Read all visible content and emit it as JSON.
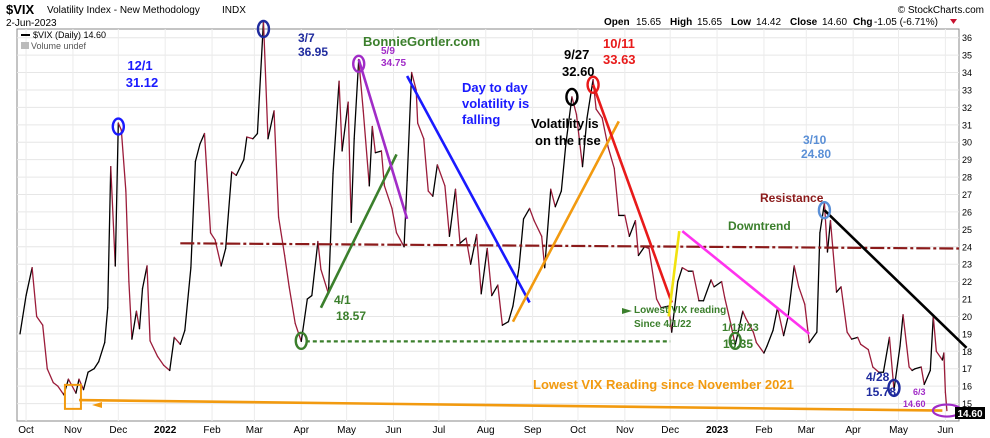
{
  "header": {
    "symbol": "$VIX",
    "name": "Volatility Index - New Methodology",
    "exchange": "INDX",
    "date": "2-Jun-2023",
    "brand": "© StockCharts.com",
    "open_label": "Open",
    "open": "15.65",
    "high_label": "High",
    "high": "15.65",
    "low_label": "Low",
    "low": "14.42",
    "close_label": "Close",
    "close": "14.60",
    "chg_label": "Chg",
    "chg": "-1.05 (-6.71%)"
  },
  "legend": {
    "series_label": "$VIX (Daily) 14.60",
    "volume_label": "Volume undef"
  },
  "watermark": "BonnieGortler.com",
  "price_box": "14.60",
  "colors": {
    "up": "#000000",
    "down": "#9b1c3a",
    "blue": "#1a1aff",
    "red": "#e81a1a",
    "green": "#3b7f2c",
    "purple": "#a12cc7",
    "orange": "#f29a0f",
    "magenta": "#ff33ee",
    "yellow": "#f1e20f",
    "darkred": "#8b1a1a",
    "light_blue": "#5a8fd6",
    "navy": "#1f2b9e"
  },
  "annotations": {
    "a_1201_date": "12/1",
    "a_1201_val": "31.12",
    "a_37_date": "3/7",
    "a_37_val": "36.95",
    "a_59_date": "5/9",
    "a_59_val": "34.75",
    "a_927_date": "9/27",
    "a_927_val": "32.60",
    "a_1011_date": "10/11",
    "a_1011_val": "33.63",
    "a_310_date": "3/10",
    "a_310_val": "24.80",
    "a_41_date": "4/1",
    "a_41_val": "18.57",
    "a_11323_date": "1/13/23",
    "a_11323_val": "18.35",
    "a_428_date": "4/28",
    "a_428_val": "15.78",
    "a_63_date": "6/3",
    "a_63_val": "14.60",
    "day_to_day_1": "Day to day",
    "day_to_day_2": "volatility is",
    "day_to_day_3": "falling",
    "vol_rise_1": "Volatility is",
    "vol_rise_2": "on the rise",
    "resistance": "Resistance",
    "downtrend": "Downtrend",
    "lowest_since_1": "Lowest VIX reading",
    "lowest_since_2": "Since 4/1/22",
    "lowest_nov": "Lowest VIX Reading since November 2021"
  },
  "chart_data": {
    "type": "line",
    "title": "$VIX Volatility Index - New Methodology INDX",
    "ylim": [
      14,
      36.5
    ],
    "y_ticks": [
      15,
      16,
      17,
      18,
      19,
      20,
      21,
      22,
      23,
      24,
      25,
      26,
      27,
      28,
      29,
      30,
      31,
      32,
      33,
      34,
      35,
      36
    ],
    "x_ticks": [
      "Oct",
      "Nov",
      "Dec",
      "2022",
      "Feb",
      "Mar",
      "Apr",
      "May",
      "Jun",
      "Jul",
      "Aug",
      "Sep",
      "Oct",
      "Nov",
      "Dec",
      "2023",
      "Feb",
      "Mar",
      "Apr",
      "May",
      "Jun"
    ],
    "x_start": "2021-09-25",
    "x_end": "2023-06-10",
    "x_tick_dates": [
      "2021-10-01",
      "2021-11-01",
      "2021-12-01",
      "2022-01-01",
      "2022-02-01",
      "2022-03-01",
      "2022-04-01",
      "2022-05-01",
      "2022-06-01",
      "2022-07-01",
      "2022-08-01",
      "2022-09-01",
      "2022-10-01",
      "2022-11-01",
      "2022-12-01",
      "2023-01-01",
      "2023-02-01",
      "2023-03-01",
      "2023-04-01",
      "2023-05-01",
      "2023-06-01"
    ],
    "series": [
      {
        "name": "$VIX (Daily)",
        "points": [
          [
            "2021-09-27",
            19.0
          ],
          [
            "2021-10-01",
            21.2
          ],
          [
            "2021-10-05",
            22.8
          ],
          [
            "2021-10-08",
            20.0
          ],
          [
            "2021-10-12",
            19.5
          ],
          [
            "2021-10-15",
            17.0
          ],
          [
            "2021-10-19",
            16.2
          ],
          [
            "2021-10-22",
            16.0
          ],
          [
            "2021-10-26",
            15.5
          ],
          [
            "2021-10-29",
            16.4
          ],
          [
            "2021-11-03",
            15.6
          ],
          [
            "2021-11-05",
            16.4
          ],
          [
            "2021-11-08",
            15.8
          ],
          [
            "2021-11-11",
            16.8
          ],
          [
            "2021-11-15",
            17.0
          ],
          [
            "2021-11-18",
            17.4
          ],
          [
            "2021-11-22",
            18.5
          ],
          [
            "2021-11-24",
            20.5
          ],
          [
            "2021-11-26",
            28.6
          ],
          [
            "2021-11-29",
            22.9
          ],
          [
            "2021-12-01",
            31.1
          ],
          [
            "2021-12-03",
            30.7
          ],
          [
            "2021-12-06",
            27.2
          ],
          [
            "2021-12-08",
            22.0
          ],
          [
            "2021-12-10",
            18.7
          ],
          [
            "2021-12-13",
            20.3
          ],
          [
            "2021-12-15",
            19.3
          ],
          [
            "2021-12-17",
            21.6
          ],
          [
            "2021-12-20",
            22.9
          ],
          [
            "2021-12-22",
            18.6
          ],
          [
            "2021-12-27",
            17.7
          ],
          [
            "2021-12-31",
            17.2
          ],
          [
            "2022-01-04",
            16.9
          ],
          [
            "2022-01-07",
            18.8
          ],
          [
            "2022-01-11",
            18.4
          ],
          [
            "2022-01-14",
            19.2
          ],
          [
            "2022-01-18",
            22.8
          ],
          [
            "2022-01-21",
            28.9
          ],
          [
            "2022-01-24",
            29.9
          ],
          [
            "2022-01-27",
            30.5
          ],
          [
            "2022-01-31",
            24.8
          ],
          [
            "2022-02-03",
            24.4
          ],
          [
            "2022-02-07",
            22.9
          ],
          [
            "2022-02-10",
            23.9
          ],
          [
            "2022-02-14",
            28.3
          ],
          [
            "2022-02-17",
            28.1
          ],
          [
            "2022-02-22",
            29.0
          ],
          [
            "2022-02-24",
            30.3
          ],
          [
            "2022-02-28",
            30.2
          ],
          [
            "2022-03-03",
            30.5
          ],
          [
            "2022-03-07",
            36.95
          ],
          [
            "2022-03-10",
            30.2
          ],
          [
            "2022-03-14",
            31.8
          ],
          [
            "2022-03-17",
            25.7
          ],
          [
            "2022-03-21",
            23.5
          ],
          [
            "2022-03-24",
            21.7
          ],
          [
            "2022-03-28",
            19.6
          ],
          [
            "2022-04-01",
            18.57
          ],
          [
            "2022-04-05",
            21.0
          ],
          [
            "2022-04-08",
            21.2
          ],
          [
            "2022-04-12",
            24.3
          ],
          [
            "2022-04-14",
            22.7
          ],
          [
            "2022-04-19",
            21.3
          ],
          [
            "2022-04-22",
            28.2
          ],
          [
            "2022-04-26",
            33.5
          ],
          [
            "2022-04-28",
            29.5
          ],
          [
            "2022-05-02",
            32.3
          ],
          [
            "2022-05-04",
            25.4
          ],
          [
            "2022-05-06",
            30.2
          ],
          [
            "2022-05-09",
            34.75
          ],
          [
            "2022-05-12",
            31.8
          ],
          [
            "2022-05-16",
            27.5
          ],
          [
            "2022-05-18",
            30.9
          ],
          [
            "2022-05-20",
            29.4
          ],
          [
            "2022-05-24",
            29.5
          ],
          [
            "2022-05-26",
            27.5
          ],
          [
            "2022-05-31",
            26.2
          ],
          [
            "2022-06-03",
            24.8
          ],
          [
            "2022-06-08",
            24.0
          ],
          [
            "2022-06-10",
            27.8
          ],
          [
            "2022-06-13",
            34.0
          ],
          [
            "2022-06-16",
            33.0
          ],
          [
            "2022-06-17",
            31.1
          ],
          [
            "2022-06-21",
            30.2
          ],
          [
            "2022-06-24",
            27.2
          ],
          [
            "2022-06-27",
            26.9
          ],
          [
            "2022-06-30",
            28.7
          ],
          [
            "2022-07-05",
            27.5
          ],
          [
            "2022-07-08",
            24.6
          ],
          [
            "2022-07-12",
            27.3
          ],
          [
            "2022-07-15",
            24.2
          ],
          [
            "2022-07-19",
            24.5
          ],
          [
            "2022-07-22",
            23.0
          ],
          [
            "2022-07-26",
            24.7
          ],
          [
            "2022-07-29",
            21.3
          ],
          [
            "2022-08-02",
            23.9
          ],
          [
            "2022-08-05",
            21.2
          ],
          [
            "2022-08-09",
            21.8
          ],
          [
            "2022-08-12",
            19.5
          ],
          [
            "2022-08-16",
            19.7
          ],
          [
            "2022-08-19",
            20.6
          ],
          [
            "2022-08-23",
            22.8
          ],
          [
            "2022-08-26",
            25.6
          ],
          [
            "2022-08-30",
            26.2
          ],
          [
            "2022-09-02",
            25.5
          ],
          [
            "2022-09-07",
            24.6
          ],
          [
            "2022-09-09",
            22.8
          ],
          [
            "2022-09-13",
            27.3
          ],
          [
            "2022-09-16",
            26.3
          ],
          [
            "2022-09-20",
            27.2
          ],
          [
            "2022-09-23",
            29.9
          ],
          [
            "2022-09-27",
            32.6
          ],
          [
            "2022-09-30",
            31.6
          ],
          [
            "2022-10-04",
            28.6
          ],
          [
            "2022-10-07",
            31.4
          ],
          [
            "2022-10-11",
            33.6
          ],
          [
            "2022-10-13",
            31.9
          ],
          [
            "2022-10-17",
            31.4
          ],
          [
            "2022-10-21",
            29.7
          ],
          [
            "2022-10-25",
            28.5
          ],
          [
            "2022-10-28",
            25.8
          ],
          [
            "2022-11-01",
            25.8
          ],
          [
            "2022-11-04",
            24.6
          ],
          [
            "2022-11-08",
            25.5
          ],
          [
            "2022-11-10",
            23.5
          ],
          [
            "2022-11-14",
            24.0
          ],
          [
            "2022-11-17",
            23.9
          ],
          [
            "2022-11-22",
            21.0
          ],
          [
            "2022-11-25",
            20.5
          ],
          [
            "2022-11-30",
            20.6
          ],
          [
            "2022-12-02",
            19.1
          ],
          [
            "2022-12-06",
            22.0
          ],
          [
            "2022-12-09",
            22.8
          ],
          [
            "2022-12-13",
            22.6
          ],
          [
            "2022-12-16",
            22.6
          ],
          [
            "2022-12-20",
            20.9
          ],
          [
            "2022-12-23",
            20.9
          ],
          [
            "2022-12-28",
            22.1
          ],
          [
            "2022-12-30",
            21.7
          ],
          [
            "2023-01-04",
            22.0
          ],
          [
            "2023-01-06",
            21.1
          ],
          [
            "2023-01-10",
            19.6
          ],
          [
            "2023-01-13",
            18.35
          ],
          [
            "2023-01-18",
            20.3
          ],
          [
            "2023-01-20",
            19.9
          ],
          [
            "2023-01-25",
            19.1
          ],
          [
            "2023-01-27",
            18.5
          ],
          [
            "2023-02-01",
            17.9
          ],
          [
            "2023-02-03",
            18.3
          ],
          [
            "2023-02-07",
            19.2
          ],
          [
            "2023-02-10",
            20.5
          ],
          [
            "2023-02-14",
            18.9
          ],
          [
            "2023-02-17",
            20.0
          ],
          [
            "2023-02-21",
            22.9
          ],
          [
            "2023-02-24",
            21.7
          ],
          [
            "2023-02-28",
            20.7
          ],
          [
            "2023-03-03",
            18.5
          ],
          [
            "2023-03-08",
            19.1
          ],
          [
            "2023-03-10",
            24.8
          ],
          [
            "2023-03-13",
            26.5
          ],
          [
            "2023-03-15",
            23.7
          ],
          [
            "2023-03-17",
            25.5
          ],
          [
            "2023-03-21",
            21.4
          ],
          [
            "2023-03-24",
            21.7
          ],
          [
            "2023-03-28",
            19.1
          ],
          [
            "2023-03-31",
            18.7
          ],
          [
            "2023-04-04",
            18.8
          ],
          [
            "2023-04-06",
            18.4
          ],
          [
            "2023-04-11",
            18.1
          ],
          [
            "2023-04-14",
            17.1
          ],
          [
            "2023-04-18",
            16.8
          ],
          [
            "2023-04-21",
            16.8
          ],
          [
            "2023-04-25",
            18.8
          ],
          [
            "2023-04-28",
            15.78
          ],
          [
            "2023-05-02",
            18.3
          ],
          [
            "2023-05-04",
            20.1
          ],
          [
            "2023-05-08",
            17.1
          ],
          [
            "2023-05-10",
            16.9
          ],
          [
            "2023-05-12",
            17.0
          ],
          [
            "2023-05-16",
            17.1
          ],
          [
            "2023-05-18",
            16.1
          ],
          [
            "2023-05-22",
            16.9
          ],
          [
            "2023-05-24",
            20.0
          ],
          [
            "2023-05-26",
            18.0
          ],
          [
            "2023-05-30",
            17.5
          ],
          [
            "2023-05-31",
            17.9
          ],
          [
            "2023-06-01",
            15.65
          ],
          [
            "2023-06-02",
            14.6
          ]
        ]
      }
    ],
    "lines": [
      {
        "name": "resistance",
        "color": "darkred",
        "dash": true,
        "from": [
          "2022-01-11",
          24.2
        ],
        "to": [
          "2023-06-10",
          23.9
        ]
      },
      {
        "name": "lowest-since-nov",
        "color": "orange",
        "dash": false,
        "from": [
          "2021-11-05",
          15.2
        ],
        "to": [
          "2023-05-30",
          14.6
        ]
      },
      {
        "name": "lowest-since-apr-arrow",
        "color": "green",
        "dash": true,
        "from": [
          "2022-04-04",
          18.57
        ],
        "to": [
          "2022-12-01",
          18.57
        ]
      },
      {
        "name": "green-rise-1",
        "color": "green",
        "dash": false,
        "from": [
          "2022-04-14",
          20.5
        ],
        "to": [
          "2022-06-03",
          29.3
        ]
      },
      {
        "name": "purple-fall",
        "color": "purple",
        "dash": false,
        "from": [
          "2022-05-09",
          34.75
        ],
        "to": [
          "2022-06-10",
          25.6
        ]
      },
      {
        "name": "blue-fall",
        "color": "blue",
        "dash": false,
        "from": [
          "2022-06-10",
          33.8
        ],
        "to": [
          "2022-08-30",
          20.8
        ]
      },
      {
        "name": "orange-rise",
        "color": "orange",
        "dash": false,
        "from": [
          "2022-08-19",
          19.7
        ],
        "to": [
          "2022-10-28",
          31.2
        ]
      },
      {
        "name": "red-fall",
        "color": "red",
        "dash": false,
        "from": [
          "2022-10-11",
          33.3
        ],
        "to": [
          "2022-12-02",
          20.8
        ]
      },
      {
        "name": "yellow-rise",
        "color": "yellow",
        "dash": false,
        "from": [
          "2022-11-30",
          20.0
        ],
        "to": [
          "2022-12-07",
          24.9
        ]
      },
      {
        "name": "magenta-fall",
        "color": "magenta",
        "dash": false,
        "from": [
          "2022-12-09",
          24.9
        ],
        "to": [
          "2023-03-03",
          19.0
        ]
      },
      {
        "name": "black-fall",
        "color": "up",
        "dash": false,
        "from": [
          "2023-03-13",
          26.1
        ],
        "to": [
          "2023-06-15",
          18.2
        ]
      }
    ],
    "markers": [
      {
        "name": "marker-12-1",
        "date": "2021-12-01",
        "y": 30.9,
        "color": "blue"
      },
      {
        "name": "marker-3-7",
        "date": "2022-03-07",
        "y": 36.5,
        "color": "navy"
      },
      {
        "name": "marker-5-9",
        "date": "2022-05-09",
        "y": 34.5,
        "color": "purple"
      },
      {
        "name": "marker-9-27",
        "date": "2022-09-27",
        "y": 32.6,
        "color": "up"
      },
      {
        "name": "marker-10-11",
        "date": "2022-10-11",
        "y": 33.3,
        "color": "red"
      },
      {
        "name": "marker-3-10",
        "date": "2023-03-13",
        "y": 26.1,
        "color": "light_blue"
      },
      {
        "name": "marker-4-1",
        "date": "2022-04-01",
        "y": 18.6,
        "color": "green"
      },
      {
        "name": "marker-1-13",
        "date": "2023-01-13",
        "y": 18.6,
        "color": "green"
      },
      {
        "name": "marker-4-28",
        "date": "2023-04-28",
        "y": 15.9,
        "color": "navy"
      },
      {
        "name": "marker-6-2",
        "date": "2023-06-02",
        "y": 14.6,
        "color": "purple"
      },
      {
        "name": "marker-nov-low",
        "date": "2021-11-01",
        "y": 15.5,
        "color": "orange"
      }
    ]
  }
}
